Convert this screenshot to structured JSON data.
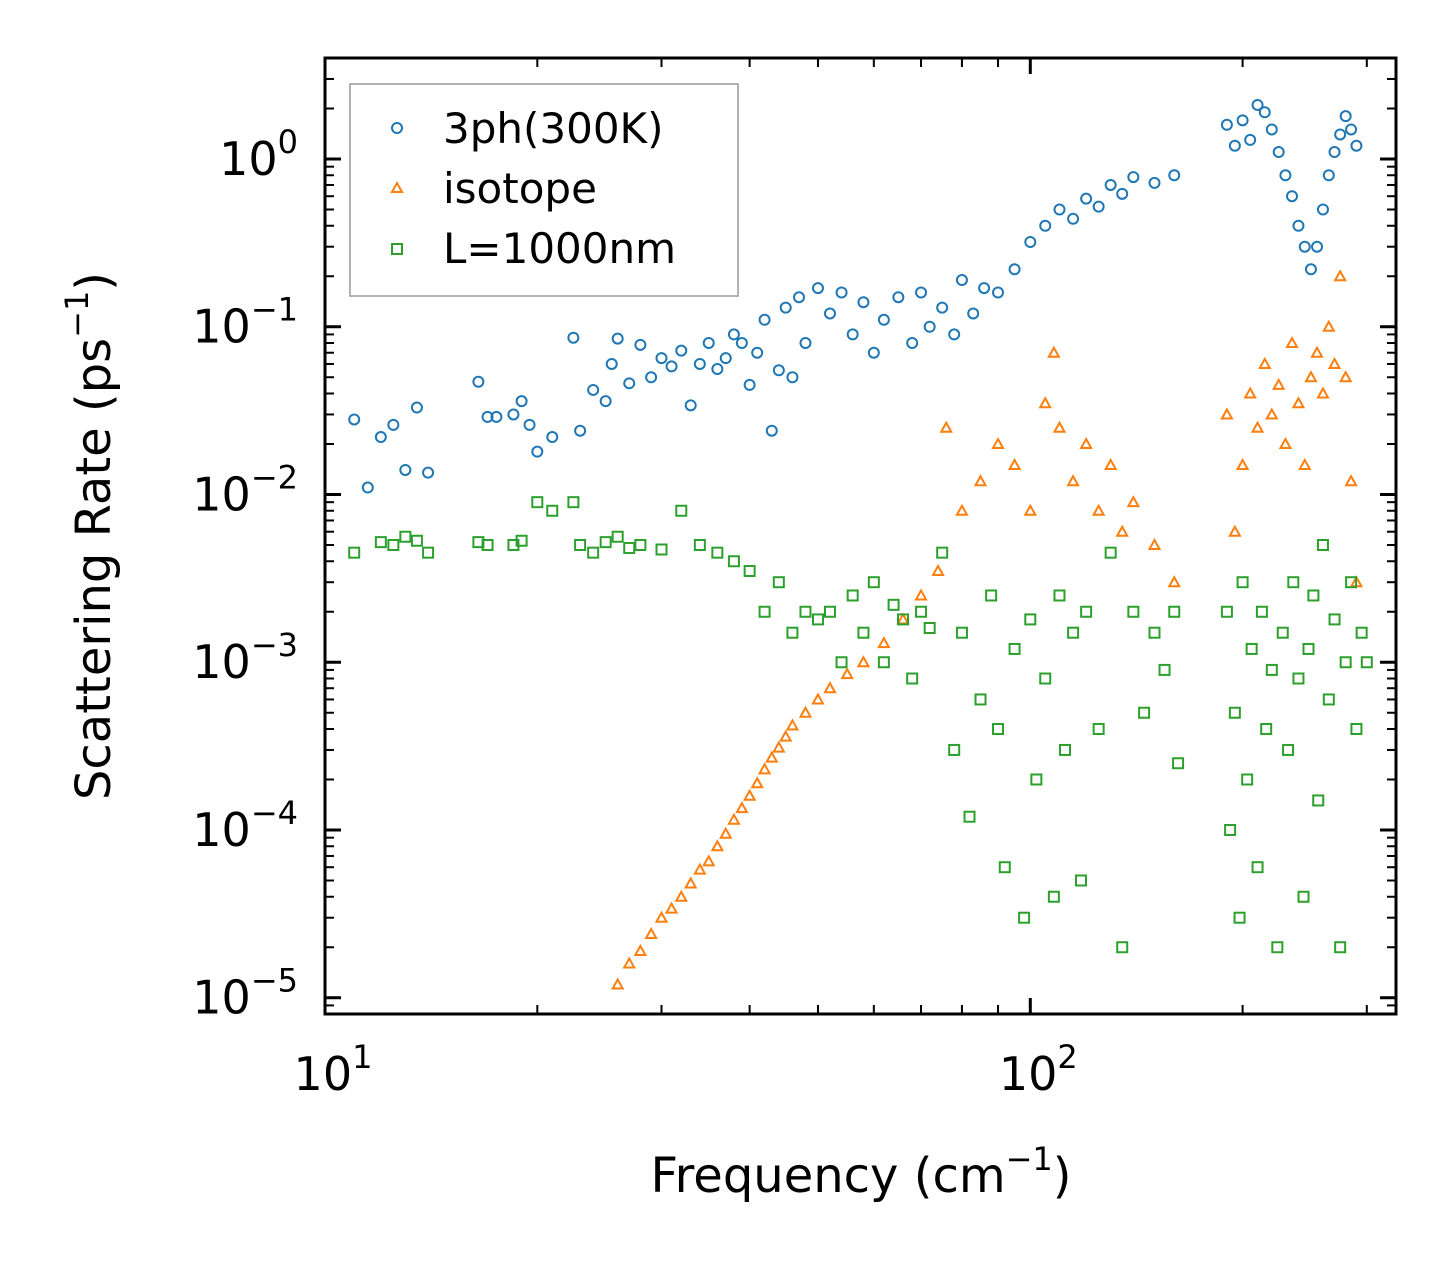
{
  "chart_data": {
    "type": "scatter",
    "xscale": "log",
    "yscale": "log",
    "xlim": [
      10,
      330
    ],
    "ylim": [
      8e-06,
      4
    ],
    "xlabel": {
      "main": "Frequency (cm",
      "sup": "−1",
      "close": ")"
    },
    "ylabel": {
      "main": "Scattering Rate (ps",
      "sup": "−1",
      "close": ")"
    },
    "x_ticks": [
      {
        "value": 10,
        "base": "10",
        "exp": "1"
      },
      {
        "value": 100,
        "base": "10",
        "exp": "2"
      }
    ],
    "y_ticks": [
      {
        "value": 1,
        "base": "10",
        "exp": "0"
      },
      {
        "value": 0.1,
        "base": "10",
        "exp": "−1"
      },
      {
        "value": 0.01,
        "base": "10",
        "exp": "−2"
      },
      {
        "value": 0.001,
        "base": "10",
        "exp": "−3"
      },
      {
        "value": 0.0001,
        "base": "10",
        "exp": "−4"
      },
      {
        "value": 1e-05,
        "base": "10",
        "exp": "−5"
      }
    ],
    "legend_position": "top-left",
    "series": [
      {
        "name": "3ph(300K)",
        "marker": "circle",
        "color": "#1f77b4",
        "points": [
          [
            11,
            0.028
          ],
          [
            11.5,
            0.011
          ],
          [
            12,
            0.022
          ],
          [
            12.5,
            0.026
          ],
          [
            13,
            0.014
          ],
          [
            13.5,
            0.033
          ],
          [
            14,
            0.0135
          ],
          [
            16.5,
            0.047
          ],
          [
            17,
            0.029
          ],
          [
            17.5,
            0.029
          ],
          [
            18.5,
            0.03
          ],
          [
            19,
            0.036
          ],
          [
            19.5,
            0.026
          ],
          [
            20,
            0.018
          ],
          [
            21,
            0.022
          ],
          [
            22.5,
            0.086
          ],
          [
            23,
            0.024
          ],
          [
            24,
            0.042
          ],
          [
            25,
            0.036
          ],
          [
            25.5,
            0.06
          ],
          [
            26,
            0.085
          ],
          [
            27,
            0.046
          ],
          [
            28,
            0.078
          ],
          [
            29,
            0.05
          ],
          [
            30,
            0.065
          ],
          [
            31,
            0.058
          ],
          [
            32,
            0.072
          ],
          [
            33,
            0.034
          ],
          [
            34,
            0.06
          ],
          [
            35,
            0.08
          ],
          [
            36,
            0.056
          ],
          [
            37,
            0.065
          ],
          [
            38,
            0.09
          ],
          [
            39,
            0.08
          ],
          [
            40,
            0.045
          ],
          [
            41,
            0.07
          ],
          [
            42,
            0.11
          ],
          [
            43,
            0.024
          ],
          [
            44,
            0.055
          ],
          [
            45,
            0.13
          ],
          [
            46,
            0.05
          ],
          [
            47,
            0.15
          ],
          [
            48,
            0.08
          ],
          [
            50,
            0.17
          ],
          [
            52,
            0.12
          ],
          [
            54,
            0.16
          ],
          [
            56,
            0.09
          ],
          [
            58,
            0.14
          ],
          [
            60,
            0.07
          ],
          [
            62,
            0.11
          ],
          [
            65,
            0.15
          ],
          [
            68,
            0.08
          ],
          [
            70,
            0.16
          ],
          [
            72,
            0.1
          ],
          [
            75,
            0.13
          ],
          [
            78,
            0.09
          ],
          [
            80,
            0.19
          ],
          [
            83,
            0.12
          ],
          [
            86,
            0.17
          ],
          [
            90,
            0.16
          ],
          [
            95,
            0.22
          ],
          [
            100,
            0.32
          ],
          [
            105,
            0.4
          ],
          [
            110,
            0.5
          ],
          [
            115,
            0.44
          ],
          [
            120,
            0.58
          ],
          [
            125,
            0.52
          ],
          [
            130,
            0.7
          ],
          [
            135,
            0.62
          ],
          [
            140,
            0.78
          ],
          [
            150,
            0.72
          ],
          [
            160,
            0.8
          ],
          [
            190,
            1.6
          ],
          [
            195,
            1.2
          ],
          [
            200,
            1.7
          ],
          [
            205,
            1.3
          ],
          [
            210,
            2.1
          ],
          [
            215,
            1.9
          ],
          [
            220,
            1.5
          ],
          [
            225,
            1.1
          ],
          [
            230,
            0.8
          ],
          [
            235,
            0.6
          ],
          [
            240,
            0.4
          ],
          [
            245,
            0.3
          ],
          [
            250,
            0.22
          ],
          [
            255,
            0.3
          ],
          [
            260,
            0.5
          ],
          [
            265,
            0.8
          ],
          [
            270,
            1.1
          ],
          [
            275,
            1.4
          ],
          [
            280,
            1.8
          ],
          [
            285,
            1.5
          ],
          [
            290,
            1.2
          ]
        ]
      },
      {
        "name": "isotope",
        "marker": "triangle",
        "color": "#ff7f0e",
        "points": [
          [
            26,
            1.2e-05
          ],
          [
            27,
            1.6e-05
          ],
          [
            28,
            1.9e-05
          ],
          [
            29,
            2.4e-05
          ],
          [
            30,
            3e-05
          ],
          [
            31,
            3.4e-05
          ],
          [
            32,
            4e-05
          ],
          [
            33,
            4.8e-05
          ],
          [
            34,
            5.8e-05
          ],
          [
            35,
            6.5e-05
          ],
          [
            36,
            8e-05
          ],
          [
            37,
            9.5e-05
          ],
          [
            38,
            0.000115
          ],
          [
            39,
            0.000135
          ],
          [
            40,
            0.00016
          ],
          [
            41,
            0.00019
          ],
          [
            42,
            0.00023
          ],
          [
            43,
            0.00027
          ],
          [
            44,
            0.00031
          ],
          [
            45,
            0.00036
          ],
          [
            46,
            0.00042
          ],
          [
            48,
            0.0005
          ],
          [
            50,
            0.0006
          ],
          [
            52,
            0.0007
          ],
          [
            55,
            0.00085
          ],
          [
            58,
            0.001
          ],
          [
            62,
            0.0013
          ],
          [
            66,
            0.0018
          ],
          [
            70,
            0.0025
          ],
          [
            74,
            0.0035
          ],
          [
            76,
            0.025
          ],
          [
            80,
            0.008
          ],
          [
            85,
            0.012
          ],
          [
            90,
            0.02
          ],
          [
            95,
            0.015
          ],
          [
            100,
            0.008
          ],
          [
            105,
            0.035
          ],
          [
            108,
            0.07
          ],
          [
            110,
            0.025
          ],
          [
            115,
            0.012
          ],
          [
            120,
            0.02
          ],
          [
            125,
            0.008
          ],
          [
            130,
            0.015
          ],
          [
            135,
            0.006
          ],
          [
            140,
            0.009
          ],
          [
            150,
            0.005
          ],
          [
            160,
            0.003
          ],
          [
            190,
            0.03
          ],
          [
            195,
            0.006
          ],
          [
            200,
            0.015
          ],
          [
            205,
            0.04
          ],
          [
            210,
            0.025
          ],
          [
            215,
            0.06
          ],
          [
            220,
            0.03
          ],
          [
            225,
            0.045
          ],
          [
            230,
            0.02
          ],
          [
            235,
            0.08
          ],
          [
            240,
            0.035
          ],
          [
            245,
            0.015
          ],
          [
            250,
            0.05
          ],
          [
            255,
            0.07
          ],
          [
            260,
            0.04
          ],
          [
            265,
            0.1
          ],
          [
            270,
            0.06
          ],
          [
            275,
            0.2
          ],
          [
            280,
            0.05
          ],
          [
            285,
            0.012
          ],
          [
            290,
            0.003
          ]
        ]
      },
      {
        "name": "L=1000nm",
        "marker": "square",
        "color": "#2ca02c",
        "points": [
          [
            11,
            0.0045
          ],
          [
            12,
            0.0052
          ],
          [
            12.5,
            0.005
          ],
          [
            13,
            0.0056
          ],
          [
            13.5,
            0.0053
          ],
          [
            14,
            0.0045
          ],
          [
            16.5,
            0.0052
          ],
          [
            17,
            0.005
          ],
          [
            18.5,
            0.005
          ],
          [
            19,
            0.0053
          ],
          [
            20,
            0.009
          ],
          [
            21,
            0.008
          ],
          [
            22.5,
            0.009
          ],
          [
            23,
            0.005
          ],
          [
            24,
            0.0045
          ],
          [
            25,
            0.0052
          ],
          [
            26,
            0.0056
          ],
          [
            27,
            0.0048
          ],
          [
            28,
            0.005
          ],
          [
            30,
            0.0047
          ],
          [
            32,
            0.008
          ],
          [
            34,
            0.005
          ],
          [
            36,
            0.0045
          ],
          [
            38,
            0.004
          ],
          [
            40,
            0.0035
          ],
          [
            42,
            0.002
          ],
          [
            44,
            0.003
          ],
          [
            46,
            0.0015
          ],
          [
            48,
            0.002
          ],
          [
            50,
            0.0018
          ],
          [
            52,
            0.002
          ],
          [
            54,
            0.001
          ],
          [
            56,
            0.0025
          ],
          [
            58,
            0.0015
          ],
          [
            60,
            0.003
          ],
          [
            62,
            0.001
          ],
          [
            64,
            0.0022
          ],
          [
            66,
            0.0018
          ],
          [
            68,
            0.0008
          ],
          [
            70,
            0.002
          ],
          [
            72,
            0.0016
          ],
          [
            75,
            0.0045
          ],
          [
            78,
            0.0003
          ],
          [
            80,
            0.0015
          ],
          [
            82,
            0.00012
          ],
          [
            85,
            0.0006
          ],
          [
            88,
            0.0025
          ],
          [
            90,
            0.0004
          ],
          [
            92,
            6e-05
          ],
          [
            95,
            0.0012
          ],
          [
            98,
            3e-05
          ],
          [
            100,
            0.0018
          ],
          [
            102,
            0.0002
          ],
          [
            105,
            0.0008
          ],
          [
            108,
            4e-05
          ],
          [
            110,
            0.0025
          ],
          [
            112,
            0.0003
          ],
          [
            115,
            0.0015
          ],
          [
            118,
            5e-05
          ],
          [
            120,
            0.002
          ],
          [
            125,
            0.0004
          ],
          [
            130,
            0.0045
          ],
          [
            135,
            2e-05
          ],
          [
            140,
            0.002
          ],
          [
            145,
            0.0005
          ],
          [
            150,
            0.0015
          ],
          [
            155,
            0.0009
          ],
          [
            160,
            0.002
          ],
          [
            162,
            0.00025
          ],
          [
            190,
            0.002
          ],
          [
            192,
            0.0001
          ],
          [
            195,
            0.0005
          ],
          [
            198,
            3e-05
          ],
          [
            200,
            0.003
          ],
          [
            203,
            0.0002
          ],
          [
            206,
            0.0012
          ],
          [
            210,
            6e-05
          ],
          [
            213,
            0.002
          ],
          [
            216,
            0.0004
          ],
          [
            220,
            0.0009
          ],
          [
            224,
            2e-05
          ],
          [
            228,
            0.0015
          ],
          [
            232,
            0.0003
          ],
          [
            236,
            0.003
          ],
          [
            240,
            0.0008
          ],
          [
            244,
            4e-05
          ],
          [
            248,
            0.0012
          ],
          [
            252,
            0.0025
          ],
          [
            256,
            0.00015
          ],
          [
            260,
            0.005
          ],
          [
            265,
            0.0006
          ],
          [
            270,
            0.0018
          ],
          [
            275,
            2e-05
          ],
          [
            280,
            0.001
          ],
          [
            285,
            0.003
          ],
          [
            290,
            0.0004
          ],
          [
            295,
            0.0015
          ],
          [
            300,
            0.001
          ]
        ]
      }
    ]
  }
}
